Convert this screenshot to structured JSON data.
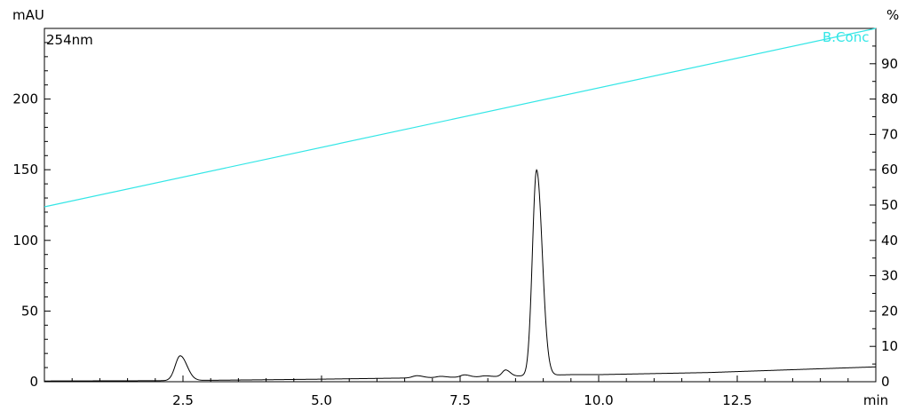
{
  "chart_data": {
    "type": "line",
    "detector_label": "254nm",
    "xlabel": "min",
    "ylabel_left": "mAU",
    "ylabel_right": "%",
    "xlim": [
      0,
      15
    ],
    "ylim_left": [
      0,
      250
    ],
    "ylim_right": [
      0,
      100
    ],
    "x_ticks": [
      {
        "value": 2.5,
        "label": "2.5"
      },
      {
        "value": 5.0,
        "label": "5.0"
      },
      {
        "value": 7.5,
        "label": "7.5"
      },
      {
        "value": 10.0,
        "label": "10.0"
      },
      {
        "value": 12.5,
        "label": "12.5"
      },
      {
        "value": 15.0,
        "label": "min"
      }
    ],
    "y_left_ticks": [
      {
        "value": 0,
        "label": "0"
      },
      {
        "value": 50,
        "label": "50"
      },
      {
        "value": 100,
        "label": "100"
      },
      {
        "value": 150,
        "label": "150"
      },
      {
        "value": 200,
        "label": "200"
      }
    ],
    "y_right_ticks": [
      {
        "value": 0,
        "label": "0"
      },
      {
        "value": 10,
        "label": "10"
      },
      {
        "value": 20,
        "label": "20"
      },
      {
        "value": 30,
        "label": "30"
      },
      {
        "value": 40,
        "label": "40"
      },
      {
        "value": 50,
        "label": "50"
      },
      {
        "value": 60,
        "label": "60"
      },
      {
        "value": 70,
        "label": "70"
      },
      {
        "value": 80,
        "label": "80"
      },
      {
        "value": 90,
        "label": "90"
      }
    ],
    "series": [
      {
        "name": "B.Conc",
        "axis": "right",
        "color": "#33e6e6",
        "points": [
          [
            0,
            49.5
          ],
          [
            15,
            100
          ]
        ]
      },
      {
        "axis": "left",
        "color": "#000000",
        "baseline": [
          [
            0,
            0.5
          ],
          [
            2.0,
            0.7
          ],
          [
            3.0,
            1.0
          ],
          [
            5.0,
            1.8
          ],
          [
            6.5,
            2.6
          ],
          [
            8.0,
            3.5
          ],
          [
            9.5,
            5.0
          ],
          [
            10.0,
            5.0
          ],
          [
            12.0,
            6.5
          ],
          [
            15.0,
            10.5
          ]
        ],
        "peaks": [
          {
            "rt": 2.45,
            "height": 17.5,
            "width": 0.09
          },
          {
            "rt": 6.72,
            "height": 1.5,
            "width": 0.08
          },
          {
            "rt": 7.15,
            "height": 0.8,
            "width": 0.07
          },
          {
            "rt": 7.58,
            "height": 1.6,
            "width": 0.07
          },
          {
            "rt": 7.95,
            "height": 0.7,
            "width": 0.07
          },
          {
            "rt": 8.32,
            "height": 4.5,
            "width": 0.06
          },
          {
            "rt": 8.88,
            "height": 145.5,
            "width": 0.075
          }
        ]
      }
    ]
  }
}
